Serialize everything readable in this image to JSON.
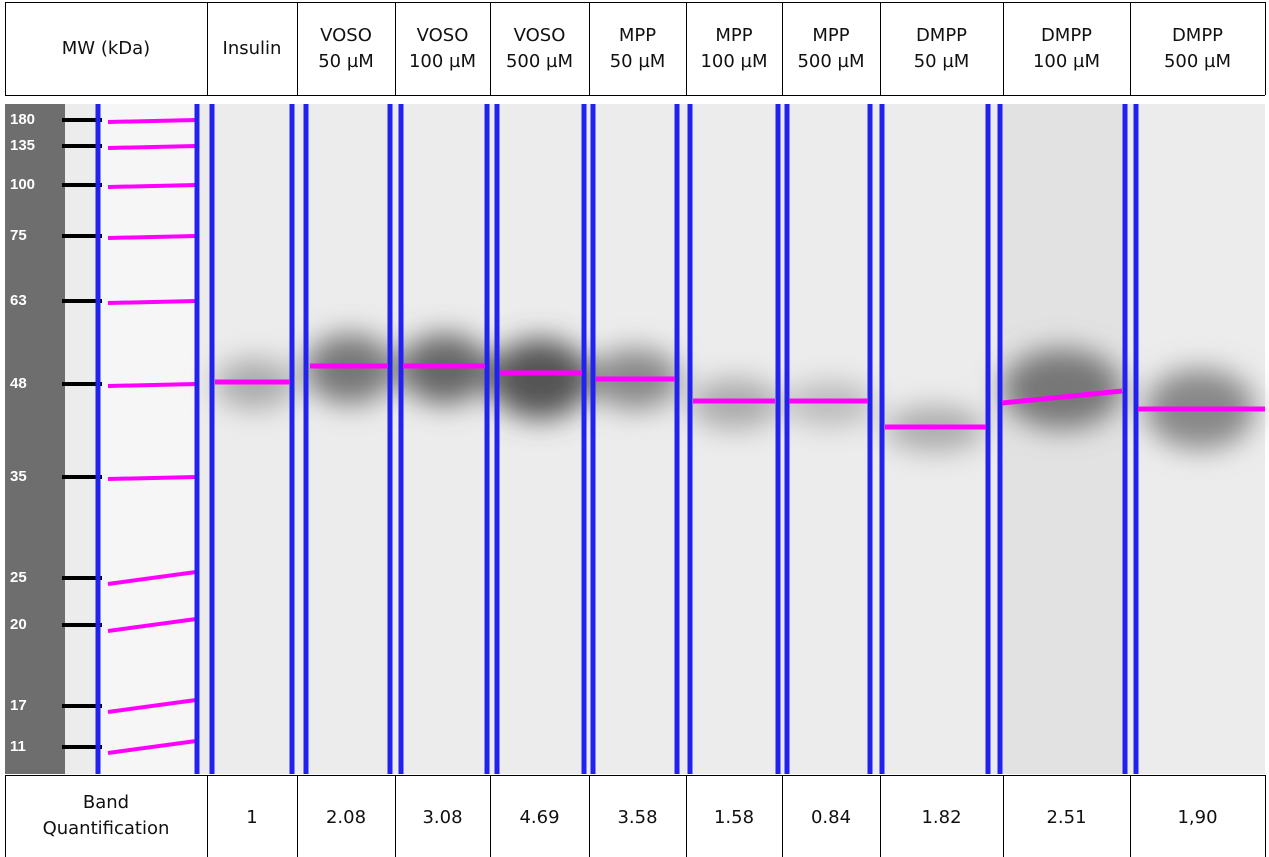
{
  "header": {
    "columns": [
      [
        "MW (kDa)"
      ],
      [
        "Insulin"
      ],
      [
        "VOSO",
        "50 µM"
      ],
      [
        "VOSO",
        "100 µM"
      ],
      [
        "VOSO",
        "500 µM"
      ],
      [
        "MPP",
        "50 µM"
      ],
      [
        "MPP",
        "100 µM"
      ],
      [
        "MPP",
        "500 µM"
      ],
      [
        "DMPP",
        "50 µM"
      ],
      [
        "DMPP",
        "100 µM"
      ],
      [
        "DMPP",
        "500 µM"
      ]
    ]
  },
  "blot": {
    "mw_markers": [
      "180",
      "135",
      "100",
      "75",
      "63",
      "48",
      "35",
      "25",
      "20",
      "17",
      "11"
    ]
  },
  "quantification": {
    "label": [
      "Band",
      "Quantification"
    ],
    "values": [
      "1",
      "2.08",
      "3.08",
      "4.69",
      "3.58",
      "1.58",
      "0.84",
      "1.82",
      "2.51",
      "1,90"
    ]
  }
}
